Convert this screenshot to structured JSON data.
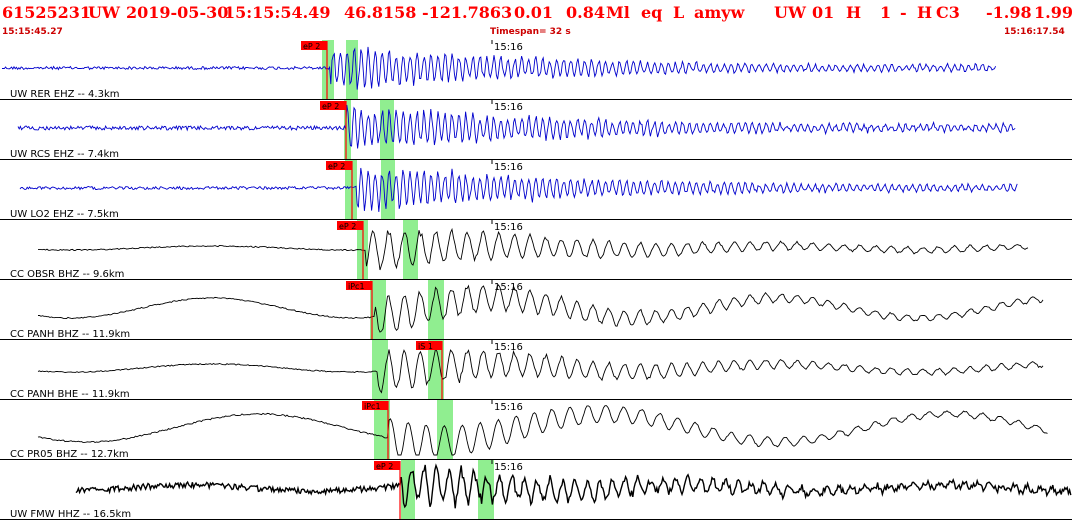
{
  "header": {
    "event_id": "61525231",
    "network": "UW",
    "date": "2019-05-30",
    "time": "15:15:54.49",
    "lat": "46.8158",
    "lon": "-121.7863",
    "depth": "0.01",
    "magnitude": "0.84",
    "mag_type": "Ml",
    "event_type": "eq",
    "flag": "L",
    "analyst": "amyw",
    "review_net": "UW",
    "review_num": "01",
    "h1": "H",
    "h2": "1",
    "dash": "-",
    "h3": "H",
    "c3": "C3",
    "v1": "-1.98",
    "v2": "1.99"
  },
  "subheader": {
    "start_time": "15:15:45.27",
    "timespan": "Timespan=  32 s",
    "end_time": "15:16:17.54"
  },
  "colors": {
    "header_red": "#ff0000",
    "pick_red": "#ff0000",
    "highlight_green": "#90ee90",
    "trace_blue": "#0000cc",
    "trace_black": "#000000"
  },
  "traces": [
    {
      "label": "UW RER EHZ -- 4.3km",
      "minute_label": "15:16",
      "pick_label": "eP 2",
      "color": "blue"
    },
    {
      "label": "UW RCS EHZ -- 7.4km",
      "minute_label": "15:16",
      "pick_label": "eP 2",
      "color": "blue"
    },
    {
      "label": "UW LO2 EHZ -- 7.5km",
      "minute_label": "15:16",
      "pick_label": "eP 2",
      "color": "blue"
    },
    {
      "label": "CC OBSR BHZ -- 9.6km",
      "minute_label": "15:16",
      "pick_label": "eP 2",
      "color": "black"
    },
    {
      "label": "CC PANH BHZ -- 11.9km",
      "minute_label": "15:16",
      "pick_label": "iPc1",
      "color": "black"
    },
    {
      "label": "CC PANH BHE -- 11.9km",
      "minute_label": "15:16",
      "pick_label": "iS 1",
      "color": "black"
    },
    {
      "label": "CC PR05 BHZ -- 12.7km",
      "minute_label": "15:16",
      "pick_label": "iPc1",
      "color": "black"
    },
    {
      "label": "UW FMW HHZ -- 16.5km",
      "minute_label": "15:16",
      "pick_label": "eP 2",
      "color": "black"
    }
  ]
}
